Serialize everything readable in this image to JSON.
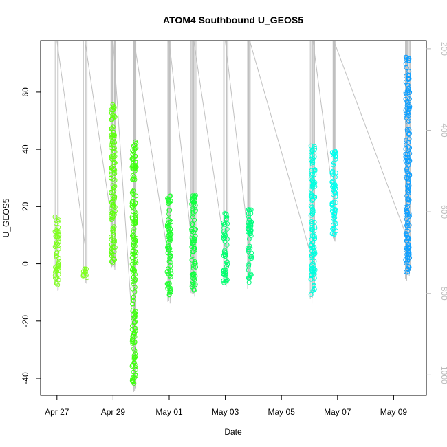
{
  "chart_data": {
    "type": "scatter",
    "title": "ATOM4 Southbound U_GEOS5",
    "xlabel": "Date",
    "ylabel": "U_GEOS5",
    "xlim": [
      "2016-04-26T10:00",
      "2016-05-10T04:00"
    ],
    "ylim": [
      -46,
      78
    ],
    "x_ticks": [
      {
        "label": "Apr 27",
        "value": "2016-04-27"
      },
      {
        "label": "Apr 29",
        "value": "2016-04-29"
      },
      {
        "label": "May 01",
        "value": "2016-05-01"
      },
      {
        "label": "May 03",
        "value": "2016-05-03"
      },
      {
        "label": "May 05",
        "value": "2016-05-05"
      },
      {
        "label": "May 07",
        "value": "2016-05-07"
      },
      {
        "label": "May 09",
        "value": "2016-05-09"
      }
    ],
    "y_ticks": [
      -40,
      -20,
      0,
      20,
      40,
      60
    ],
    "y2_ticks": [
      200,
      400,
      600,
      800,
      1000
    ],
    "y2_lim": [
      1050,
      180
    ],
    "y2_color": "#bbbbbb",
    "marker": "open-circle",
    "color_gradient": [
      "#80ff00",
      "#00ff80",
      "#00ffff",
      "#0080ff"
    ],
    "clusters": [
      {
        "time": "2016-04-27T00:00",
        "ymin": -8,
        "ymax": 17,
        "color": "#80ff20"
      },
      {
        "time": "2016-04-28T00:00",
        "ymin": -5,
        "ymax": -1,
        "color": "#80ff20"
      },
      {
        "time": "2016-04-29T00:00",
        "ymin": 0,
        "ymax": 56,
        "color": "#60ff10"
      },
      {
        "time": "2016-04-29T18:00",
        "ymin": -42,
        "ymax": 43,
        "color": "#40ff10"
      },
      {
        "time": "2016-05-01T00:00",
        "ymin": -11,
        "ymax": 25,
        "color": "#20ff30"
      },
      {
        "time": "2016-05-01T21:00",
        "ymin": -10,
        "ymax": 25,
        "color": "#10ff40"
      },
      {
        "time": "2016-05-03T00:00",
        "ymin": -7,
        "ymax": 18,
        "color": "#00ff70"
      },
      {
        "time": "2016-05-03T21:00",
        "ymin": -7,
        "ymax": 19,
        "color": "#00ff80"
      },
      {
        "time": "2016-05-06T03:00",
        "ymin": -11,
        "ymax": 42,
        "color": "#00ffe0"
      },
      {
        "time": "2016-05-06T21:00",
        "ymin": 10,
        "ymax": 40,
        "color": "#00ffee"
      },
      {
        "time": "2016-05-09T12:00",
        "ymin": -3,
        "ymax": 73,
        "color": "#10a0ff"
      }
    ]
  }
}
